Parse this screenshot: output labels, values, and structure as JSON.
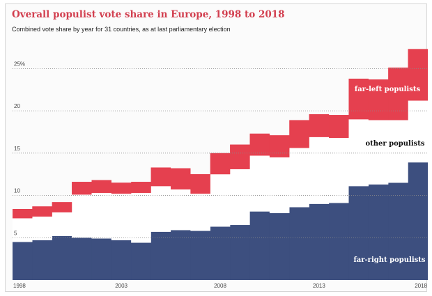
{
  "title": "Overall populist vote share in Europe, 1998 to 2018",
  "subtitle": "Combined vote share by year for 31 countries, as at last parliamentary election",
  "chart_data": {
    "type": "area",
    "stacked": true,
    "step": true,
    "x": [
      1998,
      1999,
      2000,
      2001,
      2002,
      2003,
      2004,
      2005,
      2006,
      2007,
      2008,
      2009,
      2010,
      2011,
      2012,
      2013,
      2014,
      2015,
      2016,
      2017,
      2018
    ],
    "series": [
      {
        "name": "far-right populists",
        "color": "#3d4f7f",
        "values": [
          4.5,
          4.7,
          5.2,
          5.0,
          4.9,
          4.7,
          4.4,
          5.7,
          5.9,
          5.8,
          6.3,
          6.5,
          8.1,
          7.9,
          8.6,
          9.0,
          9.1,
          11.1,
          11.3,
          11.5,
          13.9
        ]
      },
      {
        "name": "other populists",
        "color": "#ffffff",
        "values": [
          2.8,
          2.8,
          2.8,
          5.1,
          5.4,
          5.5,
          5.9,
          5.4,
          4.8,
          4.4,
          6.2,
          6.6,
          6.6,
          6.6,
          7.0,
          7.9,
          7.7,
          7.9,
          7.6,
          7.4,
          7.3
        ]
      },
      {
        "name": "far-left populists",
        "color": "#e5404f",
        "values": [
          1.1,
          1.2,
          1.2,
          1.5,
          1.5,
          1.3,
          1.3,
          2.2,
          2.5,
          2.3,
          2.5,
          2.9,
          2.6,
          2.6,
          3.3,
          2.7,
          2.7,
          4.8,
          4.8,
          6.2,
          6.1
        ]
      }
    ],
    "xlim": [
      1998,
      2018
    ],
    "ylim": [
      0,
      27.5
    ],
    "yticks": [
      5,
      10,
      15,
      20
    ],
    "ytick_labels": [
      "5",
      "10",
      "15",
      "20"
    ],
    "ytick_top_label": "25%",
    "ytick_top_value": 25,
    "xticks": [
      1998,
      2003,
      2008,
      2013,
      2018
    ],
    "xtick_labels": [
      "1998",
      "2003",
      "2008",
      "2013",
      "2018"
    ],
    "grid": true,
    "legend": "inline labels",
    "annotations": [
      "far-left populists",
      "other populists",
      "far-right populists"
    ]
  }
}
